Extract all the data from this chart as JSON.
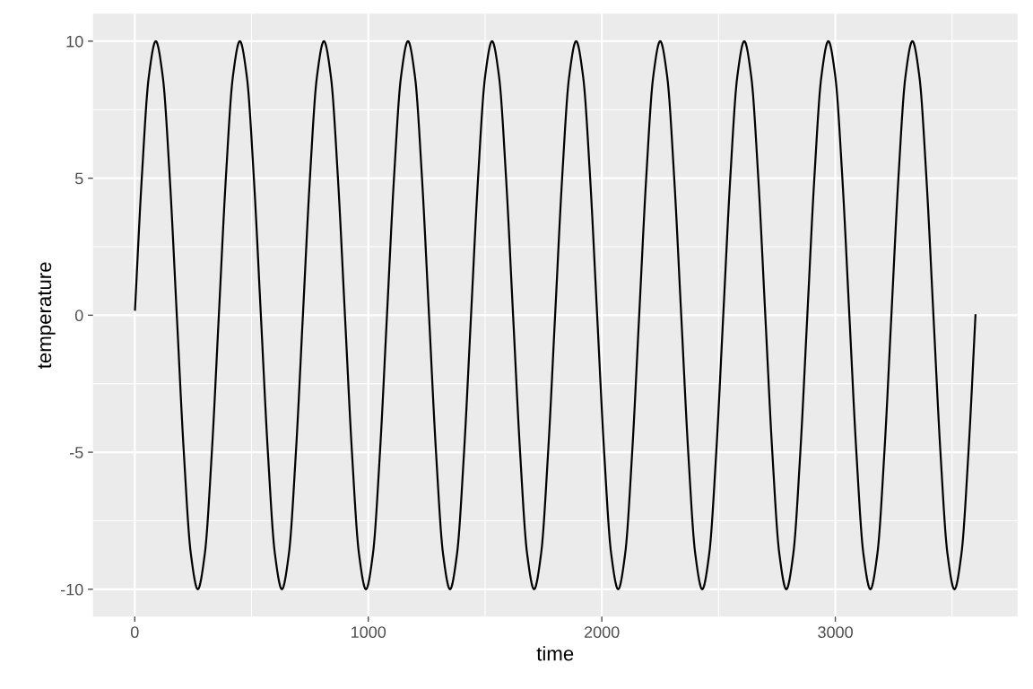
{
  "chart_data": {
    "type": "line",
    "xlabel": "time",
    "ylabel": "temperature",
    "x": [
      1,
      30,
      60,
      90,
      120,
      150,
      180,
      210,
      240,
      270,
      300,
      330,
      360,
      390,
      420,
      450,
      480,
      510,
      540,
      570,
      600,
      630,
      660,
      690,
      720,
      750,
      780,
      810,
      840,
      870,
      900,
      930,
      960,
      990,
      1020,
      1050,
      1080,
      1110,
      1140,
      1170,
      1200,
      1230,
      1260,
      1290,
      1320,
      1350,
      1380,
      1410,
      1440,
      1470,
      1500,
      1530,
      1560,
      1590,
      1620,
      1650,
      1680,
      1710,
      1740,
      1770,
      1800,
      1830,
      1860,
      1890,
      1920,
      1950,
      1980,
      2010,
      2040,
      2070,
      2100,
      2130,
      2160,
      2190,
      2220,
      2250,
      2280,
      2310,
      2340,
      2370,
      2400,
      2430,
      2460,
      2490,
      2520,
      2550,
      2580,
      2610,
      2640,
      2670,
      2700,
      2730,
      2760,
      2790,
      2820,
      2850,
      2880,
      2910,
      2940,
      2970,
      3000,
      3030,
      3060,
      3090,
      3120,
      3150,
      3180,
      3210,
      3240,
      3270,
      3300,
      3330,
      3360,
      3390,
      3420,
      3450,
      3480,
      3510,
      3540,
      3570,
      3600
    ],
    "series": [
      {
        "color": "#000000",
        "values": [
          0.2,
          5,
          8.7,
          10,
          8.7,
          5,
          0,
          -5,
          -8.7,
          -10,
          -8.7,
          -5,
          0,
          5,
          8.7,
          10,
          8.7,
          5,
          0,
          -5,
          -8.7,
          -10,
          -8.7,
          -5,
          0,
          5,
          8.7,
          10,
          8.7,
          5,
          0,
          -5,
          -8.7,
          -10,
          -8.7,
          -5,
          0,
          5,
          8.7,
          10,
          8.7,
          5,
          0,
          -5,
          -8.7,
          -10,
          -8.7,
          -5,
          0,
          5,
          8.7,
          10,
          8.7,
          5,
          0,
          -5,
          -8.7,
          -10,
          -8.7,
          -5,
          0,
          5,
          8.7,
          10,
          8.7,
          5,
          0,
          -5,
          -8.7,
          -10,
          -8.7,
          -5,
          0,
          5,
          8.7,
          10,
          8.7,
          5,
          0,
          -5,
          -8.7,
          -10,
          -8.7,
          -5,
          0,
          5,
          8.7,
          10,
          8.7,
          5,
          0,
          -5,
          -8.7,
          -10,
          -8.7,
          -5,
          0,
          5,
          8.7,
          10,
          8.7,
          5,
          0,
          -5,
          -8.7,
          -10,
          -8.7,
          -5,
          0,
          5,
          8.7,
          10,
          8.7,
          5,
          0,
          -5,
          -8.7,
          -10,
          -8.7,
          -5,
          0
        ]
      }
    ],
    "xlim": [
      -179,
      3780
    ],
    "ylim": [
      -11,
      11
    ],
    "xticks": [
      0,
      {
        "value": 500,
        "label": null
      },
      1000,
      {
        "value": 1500,
        "label": null
      },
      2000,
      {
        "value": 2500,
        "label": null
      },
      3000,
      {
        "value": 3500,
        "label": null
      }
    ],
    "yticks": [
      {
        "value": -10,
        "label": "-10"
      },
      {
        "value": -7.5,
        "label": null
      },
      {
        "value": -5,
        "label": "-5"
      },
      {
        "value": -2.5,
        "label": null
      },
      0,
      {
        "value": 2.5,
        "label": null
      },
      5,
      {
        "value": 7.5,
        "label": null
      },
      10
    ],
    "grid": true,
    "line_style": "solid",
    "marker": "none",
    "legend": false
  }
}
